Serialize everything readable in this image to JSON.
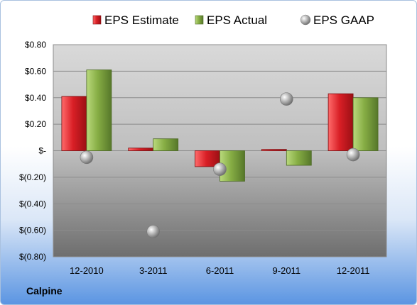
{
  "chart_data": {
    "type": "bar",
    "company": "Calpine",
    "categories": [
      "12-2010",
      "3-2011",
      "6-2011",
      "9-2011",
      "12-2011"
    ],
    "series": [
      {
        "name": "EPS Estimate",
        "kind": "bar",
        "color": "#e0252b",
        "values": [
          0.41,
          0.02,
          -0.12,
          0.01,
          0.43
        ]
      },
      {
        "name": "EPS Actual",
        "kind": "bar",
        "color": "#8bb446",
        "values": [
          0.61,
          0.09,
          -0.23,
          -0.11,
          0.4
        ]
      },
      {
        "name": "EPS GAAP",
        "kind": "point",
        "color": "#a6a6a6",
        "values": [
          -0.05,
          -0.61,
          -0.14,
          0.39,
          -0.03
        ]
      }
    ],
    "yticks": [
      0.8,
      0.6,
      0.4,
      0.2,
      0,
      -0.2,
      -0.4,
      -0.6,
      -0.8
    ],
    "ytick_labels": [
      "$0.80",
      "$0.60",
      "$0.40",
      "$0.20",
      "$-",
      "$(0.20)",
      "$(0.40)",
      "$(0.60)",
      "$(0.80)"
    ],
    "ylim": [
      -0.8,
      0.8
    ],
    "grid": true,
    "legend_position": "top"
  }
}
